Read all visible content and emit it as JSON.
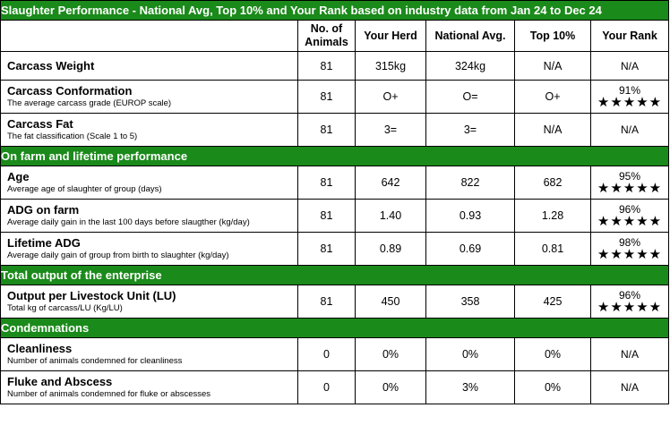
{
  "title": "Slaughter Performance - National Avg, Top 10% and Your Rank based on industry data from Jan 24 to Dec 24",
  "headers": {
    "animals": "No. of Animals",
    "your_herd": "Your Herd",
    "national": "National Avg.",
    "top10": "Top 10%",
    "rank": "Your Rank"
  },
  "sections": [
    {
      "rows": [
        {
          "name": "Carcass Weight",
          "desc": "",
          "animals": "81",
          "herd": "315kg",
          "national": "324kg",
          "top10": "N/A",
          "rank": "N/A",
          "stars": ""
        },
        {
          "name": "Carcass Conformation",
          "desc": "The average carcass grade (EUROP scale)",
          "animals": "81",
          "herd": "O+",
          "national": "O=",
          "top10": "O+",
          "rank": "91%",
          "stars": "★★★★★"
        },
        {
          "name": "Carcass Fat",
          "desc": "The fat classification (Scale 1 to 5)",
          "animals": "81",
          "herd": "3=",
          "national": "3=",
          "top10": "N/A",
          "rank": "N/A",
          "stars": ""
        }
      ]
    },
    {
      "title": "On farm and lifetime performance",
      "rows": [
        {
          "name": "Age",
          "desc": "Average age of slaughter of group (days)",
          "animals": "81",
          "herd": "642",
          "national": "822",
          "top10": "682",
          "rank": "95%",
          "stars": "★★★★★"
        },
        {
          "name": "ADG on farm",
          "desc": "Average daily gain in the last 100 days before slaugther (kg/day)",
          "animals": "81",
          "herd": "1.40",
          "national": "0.93",
          "top10": "1.28",
          "rank": "96%",
          "stars": "★★★★★"
        },
        {
          "name": "Lifetime ADG",
          "desc": "Average daily gain of group from birth to slaughter (kg/day)",
          "animals": "81",
          "herd": "0.89",
          "national": "0.69",
          "top10": "0.81",
          "rank": "98%",
          "stars": "★★★★★"
        }
      ]
    },
    {
      "title": "Total output of the enterprise",
      "rows": [
        {
          "name": "Output per Livestock Unit (LU)",
          "desc": "Total kg of carcass/LU (Kg/LU)",
          "animals": "81",
          "herd": "450",
          "national": "358",
          "top10": "425",
          "rank": "96%",
          "stars": "★★★★★"
        }
      ]
    },
    {
      "title": "Condemnations",
      "rows": [
        {
          "name": "Cleanliness",
          "desc": "Number of animals condemned for cleanliness",
          "animals": "0",
          "herd": "0%",
          "national": "0%",
          "top10": "0%",
          "rank": "N/A",
          "stars": ""
        },
        {
          "name": "Fluke and Abscess",
          "desc": "Number of animals condemned for fluke or abscesses",
          "animals": "0",
          "herd": "0%",
          "national": "3%",
          "top10": "0%",
          "rank": "N/A",
          "stars": ""
        }
      ]
    }
  ]
}
